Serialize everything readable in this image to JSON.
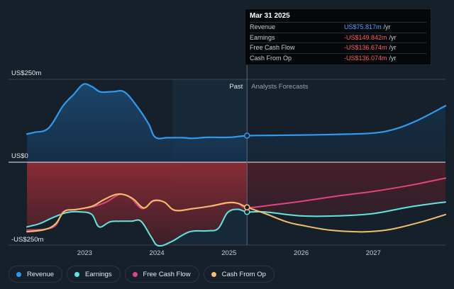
{
  "tooltip": {
    "date": "Mar 31 2025",
    "rows": [
      {
        "label": "Revenue",
        "value": "US$75.817m",
        "unit": "/yr"
      },
      {
        "label": "Earnings",
        "value": "-US$149.842m",
        "unit": "/yr"
      },
      {
        "label": "Free Cash Flow",
        "value": "-US$136.674m",
        "unit": "/yr"
      },
      {
        "label": "Cash From Op",
        "value": "-US$136.074m",
        "unit": "/yr"
      }
    ]
  },
  "legend": [
    {
      "label": "Revenue",
      "color": "#2f9bf0"
    },
    {
      "label": "Earnings",
      "color": "#5ee6df"
    },
    {
      "label": "Free Cash Flow",
      "color": "#e0457f"
    },
    {
      "label": "Cash From Op",
      "color": "#f3c06a"
    }
  ],
  "chart_data": {
    "type": "line",
    "y_unit": "US$ m",
    "ylim": [
      -250,
      250
    ],
    "y_tick_labels": [
      "US$250m",
      "US$0",
      "-US$250m"
    ],
    "y_ticks": [
      250,
      0,
      -250
    ],
    "x_range": [
      2022.2,
      2028.0
    ],
    "x_ticks": [
      2023,
      2024,
      2025,
      2026,
      2027
    ],
    "x_tick_labels": [
      "2023",
      "2024",
      "2025",
      "2026",
      "2027"
    ],
    "divider_x": 2025.25,
    "past_label": "Past",
    "forecast_label": "Analysts Forecasts",
    "series": [
      {
        "name": "Revenue",
        "color": "#2f9bf0",
        "fill": true,
        "points": [
          [
            2022.2,
            85
          ],
          [
            2022.3,
            90
          ],
          [
            2022.5,
            103
          ],
          [
            2022.7,
            170
          ],
          [
            2022.85,
            205
          ],
          [
            2022.98,
            235
          ],
          [
            2023.1,
            228
          ],
          [
            2023.22,
            212
          ],
          [
            2023.4,
            213
          ],
          [
            2023.55,
            212
          ],
          [
            2023.72,
            170
          ],
          [
            2023.88,
            118
          ],
          [
            2023.98,
            75
          ],
          [
            2024.15,
            74
          ],
          [
            2024.35,
            74
          ],
          [
            2024.5,
            72
          ],
          [
            2024.7,
            75
          ],
          [
            2025.0,
            75
          ],
          [
            2025.25,
            80
          ],
          [
            2025.6,
            81
          ],
          [
            2026.0,
            82
          ],
          [
            2026.5,
            84
          ],
          [
            2027.0,
            88
          ],
          [
            2027.3,
            100
          ],
          [
            2027.6,
            125
          ],
          [
            2028.0,
            170
          ]
        ]
      },
      {
        "name": "Earnings",
        "color": "#5ee6df",
        "points": [
          [
            2022.2,
            -195
          ],
          [
            2022.38,
            -185
          ],
          [
            2022.55,
            -168
          ],
          [
            2022.75,
            -152
          ],
          [
            2022.95,
            -150
          ],
          [
            2023.1,
            -158
          ],
          [
            2023.2,
            -195
          ],
          [
            2023.35,
            -180
          ],
          [
            2023.5,
            -178
          ],
          [
            2023.65,
            -178
          ],
          [
            2023.78,
            -178
          ],
          [
            2023.92,
            -225
          ],
          [
            2024.02,
            -252
          ],
          [
            2024.2,
            -240
          ],
          [
            2024.45,
            -210
          ],
          [
            2024.7,
            -207
          ],
          [
            2024.85,
            -200
          ],
          [
            2024.98,
            -152
          ],
          [
            2025.12,
            -142
          ],
          [
            2025.25,
            -150
          ],
          [
            2025.5,
            -150
          ],
          [
            2026.0,
            -162
          ],
          [
            2026.5,
            -162
          ],
          [
            2027.0,
            -155
          ],
          [
            2027.5,
            -135
          ],
          [
            2028.0,
            -120
          ]
        ]
      },
      {
        "name": "Free Cash Flow",
        "color": "#e0457f",
        "points": [
          [
            2022.2,
            -205
          ],
          [
            2022.45,
            -202
          ],
          [
            2022.6,
            -190
          ],
          [
            2022.7,
            -150
          ],
          [
            2022.85,
            -143
          ],
          [
            2023.1,
            -135
          ],
          [
            2023.3,
            -120
          ],
          [
            2023.45,
            -100
          ],
          [
            2023.55,
            -98
          ],
          [
            2023.65,
            -110
          ],
          [
            2023.8,
            -140
          ],
          [
            2023.95,
            -118
          ],
          [
            2024.1,
            -120
          ],
          [
            2024.25,
            -145
          ],
          [
            2024.5,
            -140
          ],
          [
            2024.75,
            -133
          ],
          [
            2024.98,
            -123
          ],
          [
            2025.12,
            -124
          ],
          [
            2025.25,
            -137
          ],
          [
            2025.6,
            -129
          ],
          [
            2026.0,
            -118
          ],
          [
            2026.5,
            -102
          ],
          [
            2027.0,
            -88
          ],
          [
            2027.5,
            -70
          ],
          [
            2028.0,
            -48
          ]
        ]
      },
      {
        "name": "Cash From Op",
        "color": "#f3c06a",
        "points": [
          [
            2022.2,
            -210
          ],
          [
            2022.45,
            -203
          ],
          [
            2022.6,
            -185
          ],
          [
            2022.72,
            -148
          ],
          [
            2022.88,
            -143
          ],
          [
            2023.1,
            -133
          ],
          [
            2023.25,
            -115
          ],
          [
            2023.42,
            -98
          ],
          [
            2023.55,
            -98
          ],
          [
            2023.68,
            -112
          ],
          [
            2023.82,
            -138
          ],
          [
            2023.95,
            -116
          ],
          [
            2024.1,
            -120
          ],
          [
            2024.25,
            -145
          ],
          [
            2024.5,
            -140
          ],
          [
            2024.75,
            -132
          ],
          [
            2024.98,
            -122
          ],
          [
            2025.12,
            -124
          ],
          [
            2025.25,
            -136
          ],
          [
            2025.5,
            -155
          ],
          [
            2025.8,
            -180
          ],
          [
            2026.0,
            -190
          ],
          [
            2026.4,
            -205
          ],
          [
            2026.8,
            -210
          ],
          [
            2027.05,
            -208
          ],
          [
            2027.3,
            -200
          ],
          [
            2027.7,
            -178
          ],
          [
            2028.0,
            -158
          ]
        ]
      }
    ]
  }
}
